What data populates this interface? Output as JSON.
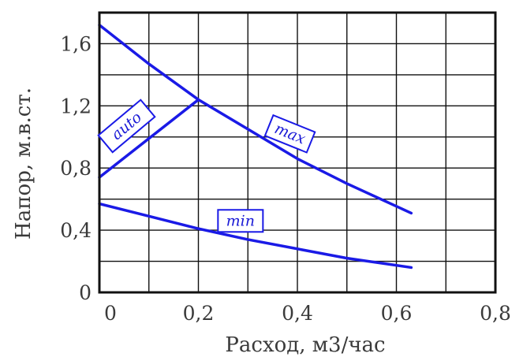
{
  "chart_data": {
    "type": "line",
    "xlabel": "Расход, м3/час",
    "ylabel": "Напор, м.в.ст.",
    "xlim": [
      0,
      0.8
    ],
    "ylim": [
      0,
      1.8
    ],
    "x_ticks": [
      "0",
      "0,2",
      "0,4",
      "0,6",
      "0,8"
    ],
    "y_ticks": [
      "0",
      "0,4",
      "0,8",
      "1,2",
      "1,6"
    ],
    "grid": true,
    "accent_color": "#1a1ae6",
    "series": [
      {
        "name": "max",
        "x": [
          0,
          0.1,
          0.2,
          0.3,
          0.4,
          0.5,
          0.63
        ],
        "y": [
          1.72,
          1.47,
          1.24,
          1.05,
          0.86,
          0.7,
          0.51
        ]
      },
      {
        "name": "auto",
        "x": [
          0,
          0.2
        ],
        "y": [
          0.74,
          1.24
        ]
      },
      {
        "name": "min",
        "x": [
          0,
          0.1,
          0.2,
          0.3,
          0.4,
          0.5,
          0.63
        ],
        "y": [
          0.57,
          0.49,
          0.41,
          0.34,
          0.28,
          0.22,
          0.16
        ]
      }
    ]
  }
}
